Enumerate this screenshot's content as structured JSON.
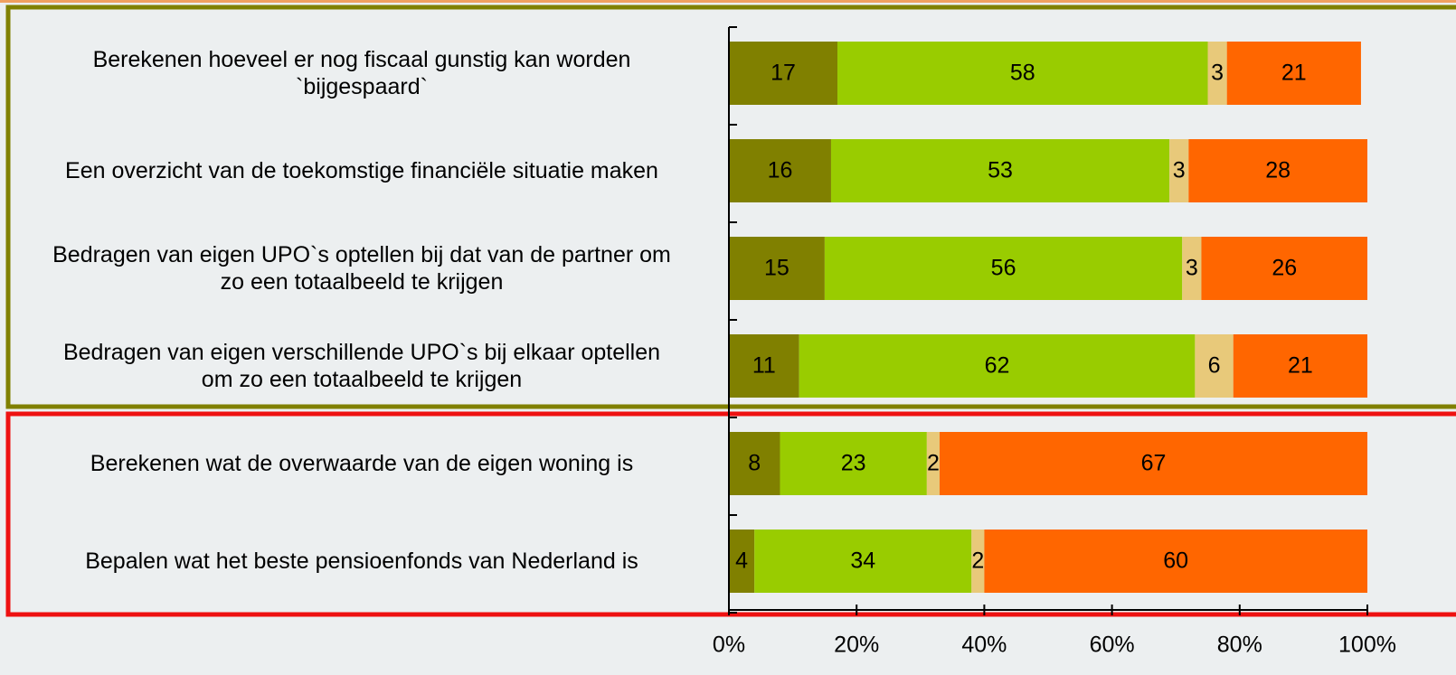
{
  "chart_data": {
    "type": "stacked_bar_horizontal",
    "categories": [
      "Berekenen hoeveel er nog fiscaal gunstig kan worden\n`bijgespaard`",
      "Een overzicht van de toekomstige financiële situatie maken",
      "Bedragen van eigen UPO`s optellen bij dat van de partner om\nzo een totaalbeeld te krijgen",
      "Bedragen van eigen verschillende UPO`s bij elkaar optellen\nom zo een totaalbeeld te krijgen",
      "Berekenen wat de overwaarde van de eigen woning is",
      "Bepalen wat het beste pensioenfonds van Nederland is"
    ],
    "series": [
      {
        "color": "#808000",
        "values": [
          17,
          16,
          15,
          11,
          8,
          4
        ]
      },
      {
        "color": "#99cc00",
        "values": [
          58,
          53,
          56,
          62,
          23,
          34
        ]
      },
      {
        "color": "#e8c97a",
        "values": [
          3,
          3,
          3,
          6,
          2,
          2
        ]
      },
      {
        "color": "#ff6600",
        "values": [
          21,
          28,
          26,
          21,
          67,
          60
        ]
      }
    ],
    "xlim": [
      0,
      100
    ],
    "xticks": [
      {
        "value": 0,
        "label": "0%"
      },
      {
        "value": 20,
        "label": "20%"
      },
      {
        "value": 40,
        "label": "40%"
      },
      {
        "value": 60,
        "label": "60%"
      },
      {
        "value": 80,
        "label": "80%"
      },
      {
        "value": 100,
        "label": "100%"
      }
    ]
  }
}
